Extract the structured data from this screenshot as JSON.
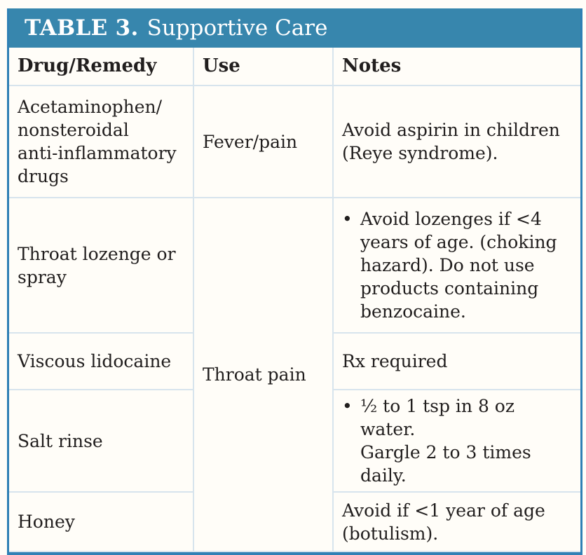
{
  "title": {
    "bold": "TABLE 3.",
    "rest": "Supportive Care"
  },
  "columns": [
    "Drug/Remedy",
    "Use",
    "Notes"
  ],
  "rows": [
    {
      "drug": "Acetaminophen/\nnonsteroidal\nanti-inflammatory\ndrugs",
      "use": "Fever/pain",
      "note": "Avoid aspirin in children\n(Reye syndrome)."
    },
    {
      "drug": "Throat lozenge or\nspray",
      "use": "Throat pain",
      "note": "Avoid lozenges if <4\nyears of age. (choking\nhazard). Do not use\nproducts containing\nbenzocaine."
    },
    {
      "drug": "Viscous lidocaine",
      "note": "Rx required"
    },
    {
      "drug": "Salt rinse",
      "note": "½ to 1 tsp in 8 oz water.\nGargle 2 to 3 times daily."
    },
    {
      "drug": "Honey",
      "note": "Avoid if <1 year of age\n(botulism)."
    }
  ],
  "glyphs": {
    "bullet": "•"
  },
  "colors": {
    "header_bg": "#3786ad",
    "outer_border": "#2f80b5",
    "gridline": "#d7e4ed",
    "text": "#211e1e",
    "header_text": "#ffffff",
    "page_bg": "#fffdf8"
  }
}
